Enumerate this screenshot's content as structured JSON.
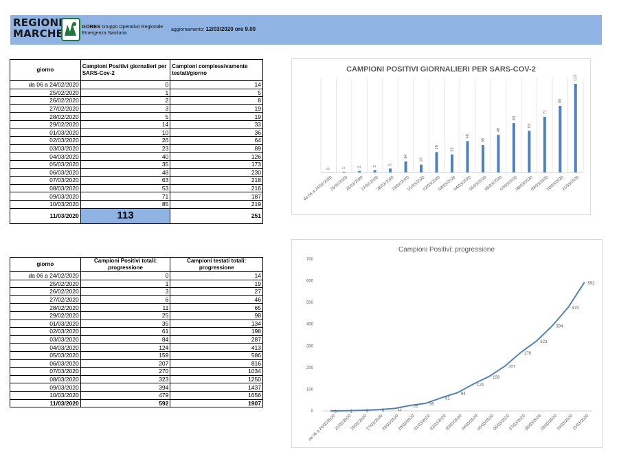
{
  "header": {
    "logo_line1": "REGIONE",
    "logo_line2": "MARCHE",
    "org_short": "GORES",
    "org_rest": "Gruppo Operativo Regionale",
    "org_line2": "Emergenza Sanitaria",
    "update_prefix": "aggiornamento:",
    "update_value": "12/03/2020 ore 9.00"
  },
  "table1": {
    "col_day": "giorno",
    "col_pos": "Campioni Positivi giornalieri per SARS-Cov-2",
    "col_tested": "Campioni complessivamente testati/giorno",
    "rows": [
      [
        "da 06 a 24/02/2020",
        "0",
        "14"
      ],
      [
        "25/02/2020",
        "1",
        "5"
      ],
      [
        "26/02/2020",
        "2",
        "8"
      ],
      [
        "27/02/2020",
        "3",
        "19"
      ],
      [
        "28/02/2020",
        "5",
        "19"
      ],
      [
        "29/02/2020",
        "14",
        "33"
      ],
      [
        "01/03/2020",
        "10",
        "36"
      ],
      [
        "02/03/2020",
        "26",
        "64"
      ],
      [
        "03/03/2020",
        "23",
        "89"
      ],
      [
        "04/03/2020",
        "40",
        "126"
      ],
      [
        "05/03/2020",
        "35",
        "173"
      ],
      [
        "06/03/2020",
        "48",
        "230"
      ],
      [
        "07/03/2020",
        "63",
        "218"
      ],
      [
        "08/03/2020",
        "53",
        "216"
      ],
      [
        "09/03/2020",
        "71",
        "187"
      ],
      [
        "10/03/2020",
        "85",
        "219"
      ]
    ],
    "last": [
      "11/03/2020",
      "113",
      "251"
    ]
  },
  "table2": {
    "col_day": "giorno",
    "col_pos": "Campioni Positivi totali: progressione",
    "col_tested": "Campioni testati totali: progressione",
    "rows": [
      [
        "da 06 a 24/02/2020",
        "0",
        "14"
      ],
      [
        "25/02/2020",
        "1",
        "19"
      ],
      [
        "26/02/2020",
        "3",
        "27"
      ],
      [
        "27/02/2020",
        "6",
        "46"
      ],
      [
        "28/02/2020",
        "11",
        "65"
      ],
      [
        "29/02/2020",
        "25",
        "98"
      ],
      [
        "01/03/2020",
        "35",
        "134"
      ],
      [
        "02/03/2020",
        "61",
        "198"
      ],
      [
        "03/03/2020",
        "84",
        "287"
      ],
      [
        "04/03/2020",
        "124",
        "413"
      ],
      [
        "05/03/2020",
        "159",
        "586"
      ],
      [
        "06/03/2020",
        "207",
        "816"
      ],
      [
        "07/03/2020",
        "270",
        "1034"
      ],
      [
        "08/03/2020",
        "323",
        "1250"
      ],
      [
        "09/03/2020",
        "394",
        "1437"
      ],
      [
        "10/03/2020",
        "479",
        "1656"
      ],
      [
        "11/03/2020",
        "592",
        "1907"
      ]
    ]
  },
  "chart_data": [
    {
      "type": "bar",
      "title": "CAMPIONI POSITIVI GIORNALIERI PER SARS-COV-2",
      "categories": [
        "da 06 a 24/02/2020",
        "25/02/2020",
        "26/02/2020",
        "27/02/2020",
        "28/02/2020",
        "29/02/2020",
        "01/03/2020",
        "02/03/2020",
        "03/03/2020",
        "04/03/2020",
        "05/03/2020",
        "06/03/2020",
        "07/03/2020",
        "08/03/2020",
        "09/03/2020",
        "10/03/2020",
        "11/03/2020"
      ],
      "values": [
        0,
        1,
        2,
        3,
        5,
        14,
        10,
        26,
        23,
        40,
        35,
        48,
        63,
        53,
        71,
        85,
        113
      ],
      "ylim": [
        0,
        120
      ],
      "grid": true,
      "color": "#4f81bd"
    },
    {
      "type": "line",
      "title": "Campioni Positivi: progressione",
      "categories": [
        "da 06 a 24/02/2020",
        "25/02/2020",
        "26/02/2020",
        "27/02/2020",
        "28/02/2020",
        "29/02/2020",
        "01/03/2020",
        "02/03/2020",
        "03/03/2020",
        "04/03/2020",
        "05/03/2020",
        "06/03/2020",
        "07/03/2020",
        "08/03/2020",
        "09/03/2020",
        "10/03/2020",
        "11/03/2020"
      ],
      "values": [
        0,
        1,
        3,
        6,
        11,
        25,
        35,
        61,
        84,
        124,
        159,
        207,
        270,
        323,
        394,
        479,
        592
      ],
      "ylim": [
        0,
        700
      ],
      "yticks": [
        "0",
        "100",
        "200",
        "300",
        "400",
        "500",
        "600",
        "700"
      ],
      "grid": false,
      "color": "#4f81bd"
    }
  ]
}
